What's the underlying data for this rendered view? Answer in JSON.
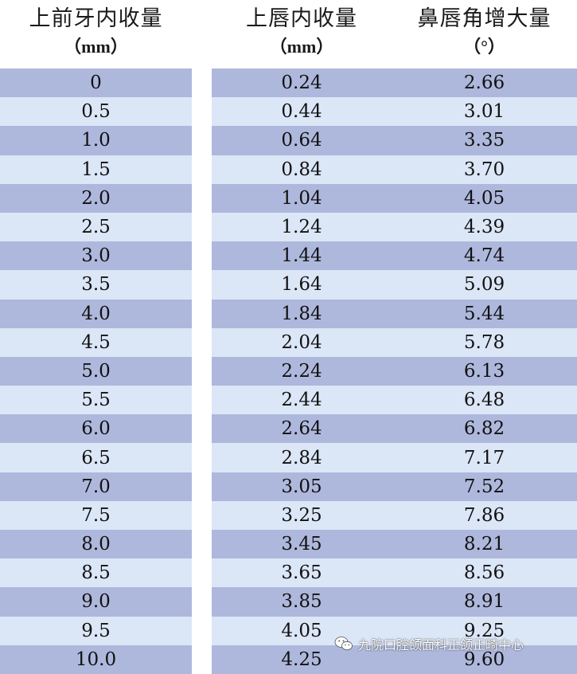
{
  "headers": {
    "col1": {
      "title": "上前牙内收量",
      "unit": "（mm）"
    },
    "col2": {
      "title": "上唇内收量",
      "unit": "（mm）"
    },
    "col3": {
      "title": "鼻唇角增大量",
      "unit": "（°）"
    }
  },
  "table": {
    "columns": [
      "上前牙内收量（mm）",
      "上唇内收量（mm）",
      "鼻唇角增大量（°）"
    ],
    "rows": [
      [
        "0",
        "0.24",
        "2.66"
      ],
      [
        "0.5",
        "0.44",
        "3.01"
      ],
      [
        "1.0",
        "0.64",
        "3.35"
      ],
      [
        "1.5",
        "0.84",
        "3.70"
      ],
      [
        "2.0",
        "1.04",
        "4.05"
      ],
      [
        "2.5",
        "1.24",
        "4.39"
      ],
      [
        "3.0",
        "1.44",
        "4.74"
      ],
      [
        "3.5",
        "1.64",
        "5.09"
      ],
      [
        "4.0",
        "1.84",
        "5.44"
      ],
      [
        "4.5",
        "2.04",
        "5.78"
      ],
      [
        "5.0",
        "2.24",
        "6.13"
      ],
      [
        "5.5",
        "2.44",
        "6.48"
      ],
      [
        "6.0",
        "2.64",
        "6.82"
      ],
      [
        "6.5",
        "2.84",
        "7.17"
      ],
      [
        "7.0",
        "3.05",
        "7.52"
      ],
      [
        "7.5",
        "3.25",
        "7.86"
      ],
      [
        "8.0",
        "3.45",
        "8.21"
      ],
      [
        "8.5",
        "3.65",
        "8.56"
      ],
      [
        "9.0",
        "3.85",
        "8.91"
      ],
      [
        "9.5",
        "4.05",
        "9.25"
      ],
      [
        "10.0",
        "4.25",
        "9.60"
      ]
    ]
  },
  "colors": {
    "row_dark": "#aeb8dc",
    "row_light": "#dbe6f7"
  },
  "watermark": {
    "icon": "wechat-icon",
    "text": "九院口腔颌面科正颌正畸中心"
  }
}
